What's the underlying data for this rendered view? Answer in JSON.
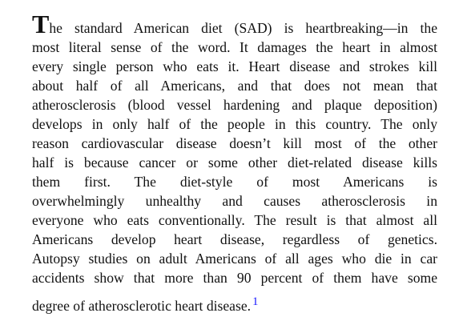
{
  "paragraph": {
    "dropcap": "T",
    "first_line_rest": "he standard American diet (SAD) is heartbreaking—in the",
    "lines": [
      "most literal sense of the word. It damages the heart in almost",
      "every single person who eats it. Heart disease and strokes kill",
      "about half of all Americans, and that does not mean that",
      "atherosclerosis (blood vessel hardening and plaque deposition)",
      "develops in only half of the people in this country. The only",
      "reason cardiovascular disease doesn’t kill most of the other",
      "half is because cancer or some other diet-related disease kills",
      "them first. The diet-style of most Americans is",
      "overwhelmingly unhealthy and causes atherosclerosis in",
      "everyone who eats conventionally. The result is that almost all",
      "Americans develop heart disease, regardless of genetics.",
      "Autopsy studies on adult Americans of all ages who die in car",
      "accidents show that more than 90 percent of them have some"
    ],
    "last_line": "degree of atherosclerotic heart disease.",
    "footnote_ref": "1"
  }
}
